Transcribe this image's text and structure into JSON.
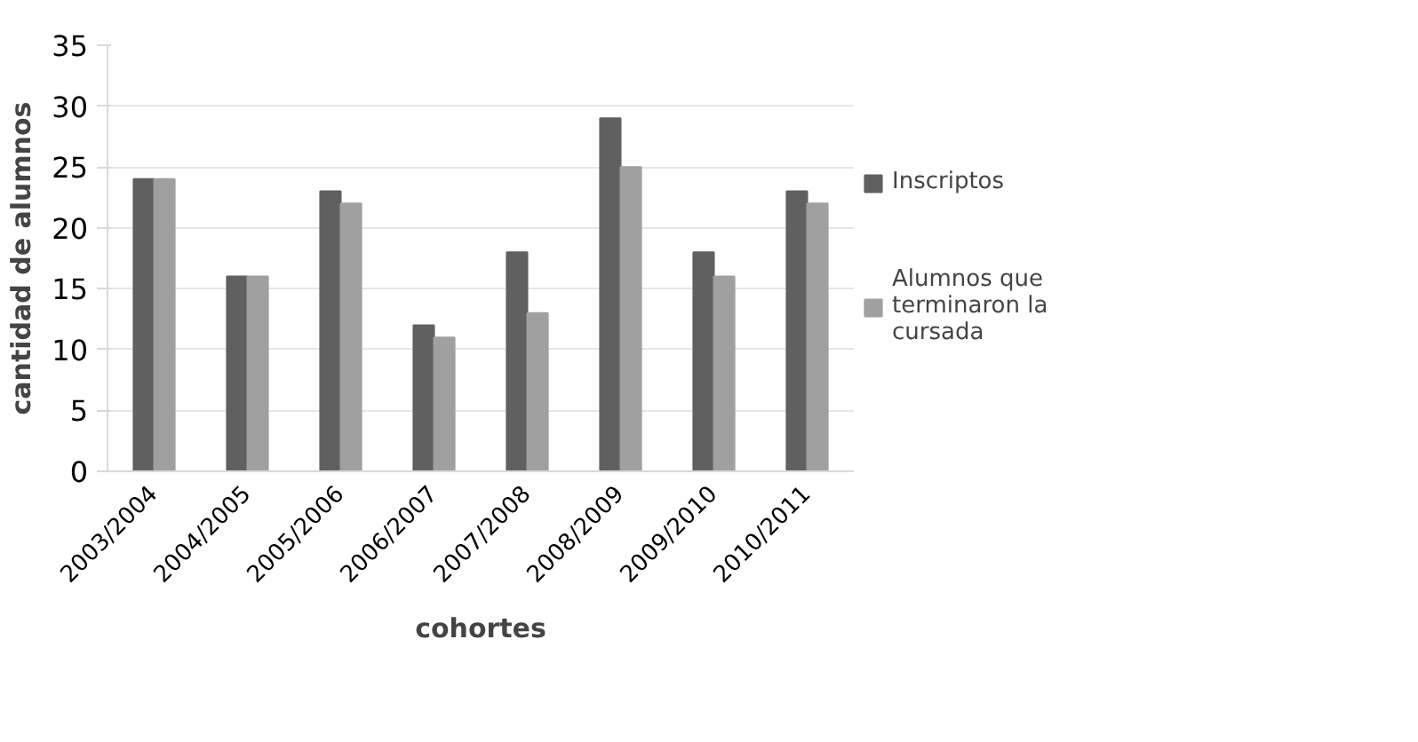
{
  "chart_data": {
    "type": "bar",
    "xlabel": "cohortes",
    "ylabel": "cantidad de alumnos",
    "categories": [
      "2003/2004",
      "2004/2005",
      "2005/2006",
      "2006/2007",
      "2007/2008",
      "2008/2009",
      "2009/2010",
      "2010/2011"
    ],
    "series": [
      {
        "name": "Inscriptos",
        "color": "#606060",
        "values": [
          24,
          16,
          23,
          12,
          18,
          29,
          18,
          23
        ]
      },
      {
        "name": "Alumnos que terminaron la cursada",
        "color": "#a0a0a0",
        "values": [
          24,
          16,
          22,
          11,
          13,
          25,
          16,
          22
        ]
      }
    ],
    "ylim": [
      0,
      35
    ],
    "yticks": [
      0,
      5,
      10,
      15,
      20,
      25,
      30,
      35
    ],
    "grid": "y",
    "legend": "right"
  }
}
